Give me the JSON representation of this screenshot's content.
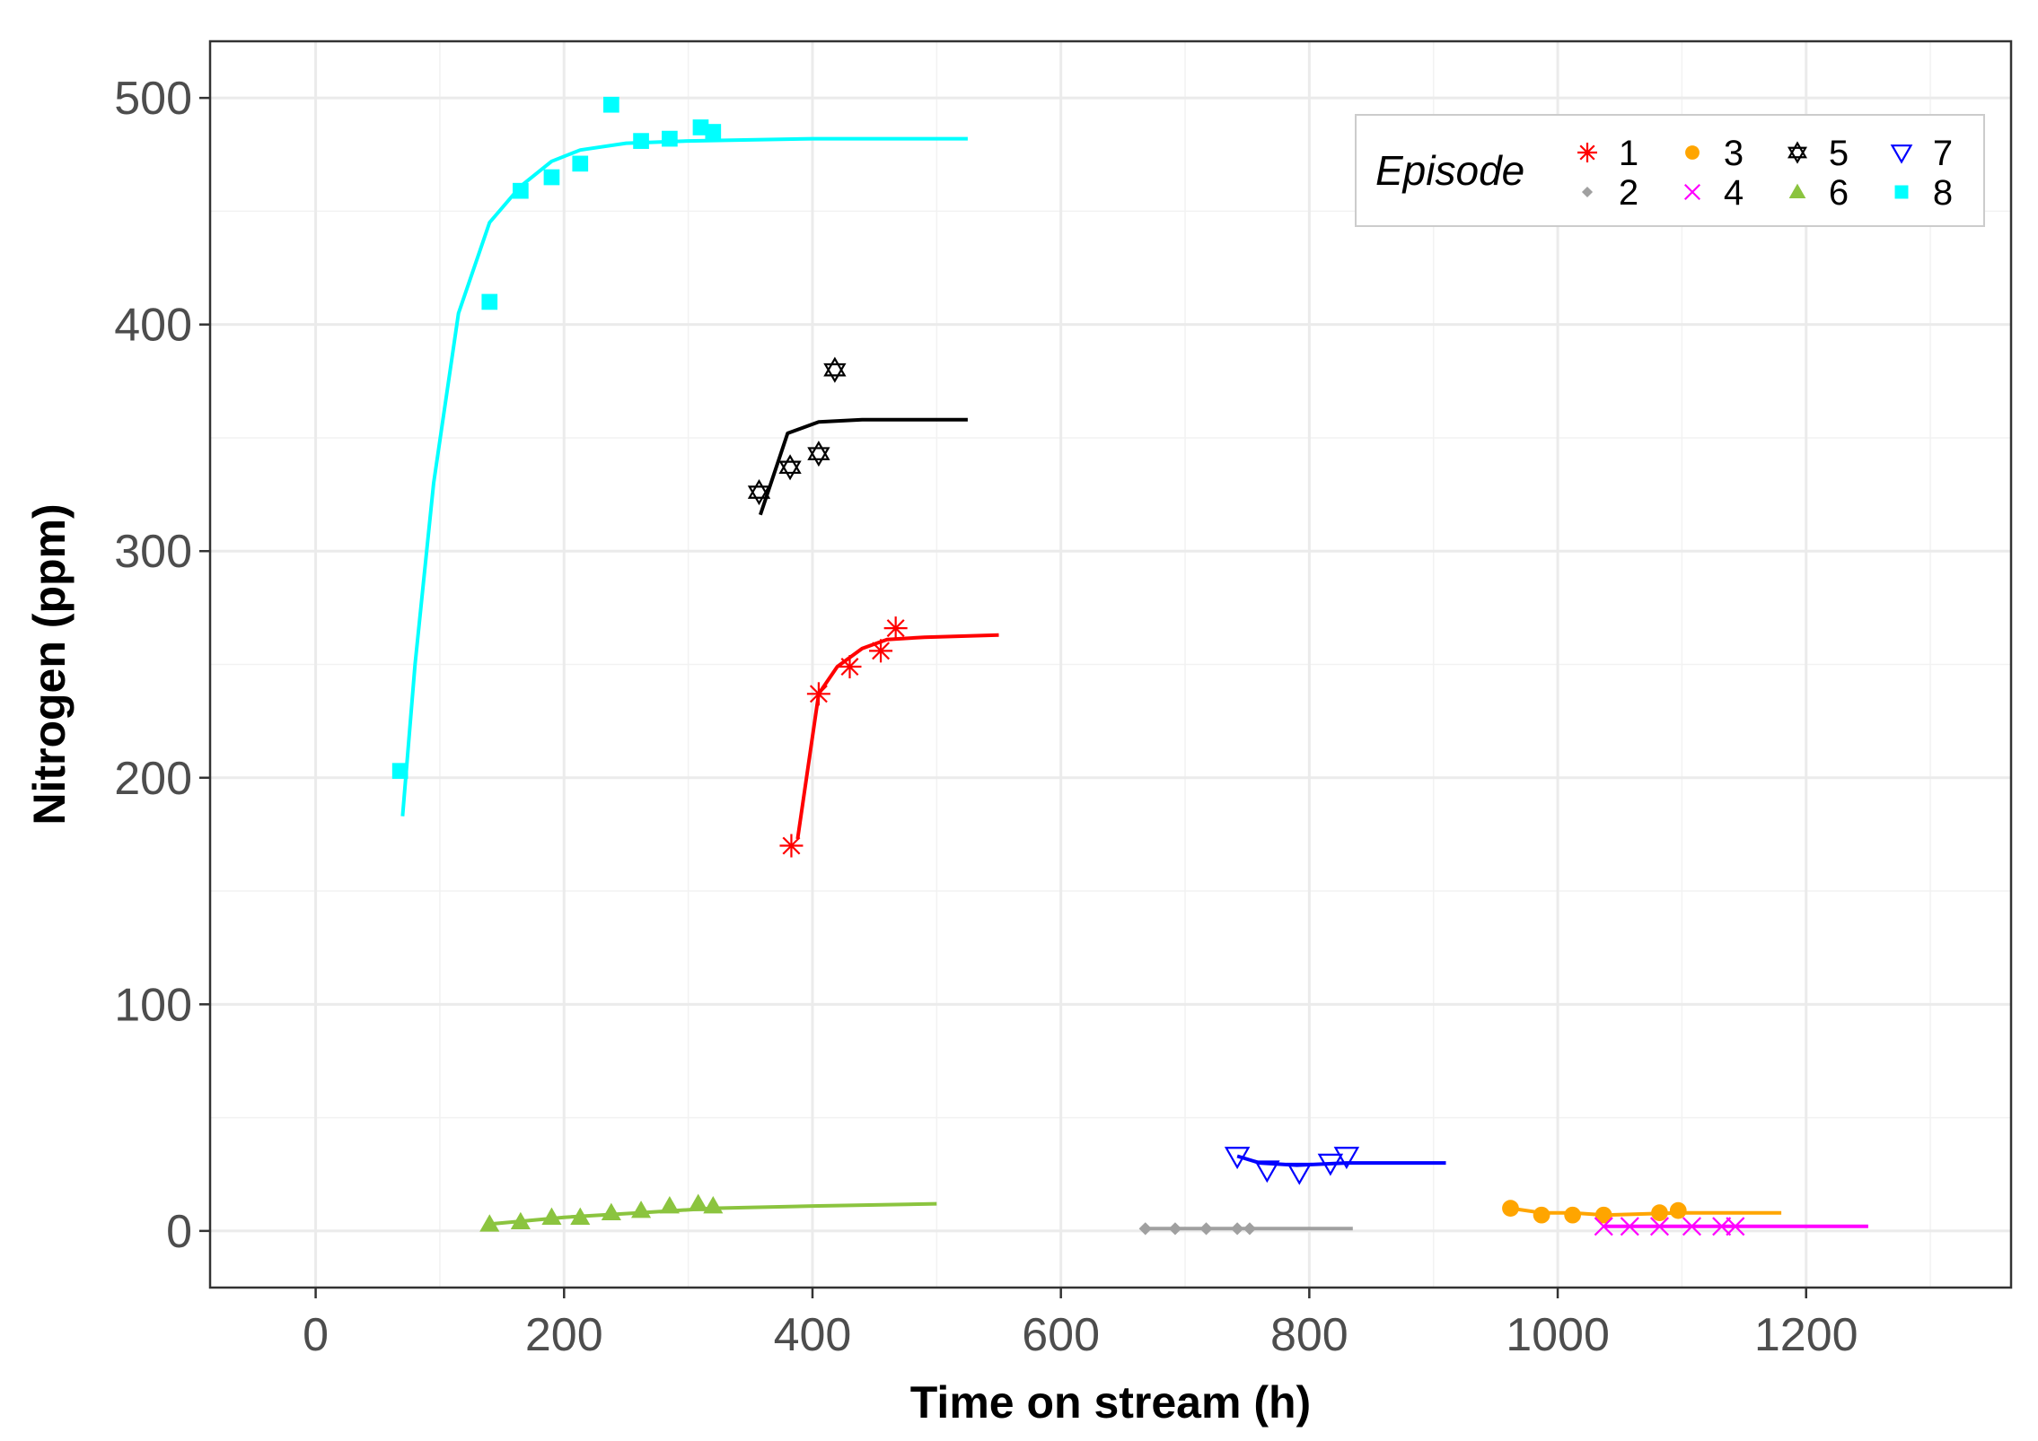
{
  "chart_data": {
    "type": "scatter",
    "title": "",
    "xlabel": "Time on stream (h)",
    "ylabel": "Nitrogen (ppm)",
    "xlim": [
      -85,
      1365
    ],
    "ylim": [
      -25,
      525
    ],
    "x_ticks": [
      0,
      200,
      400,
      600,
      800,
      1000,
      1200
    ],
    "x_tick_labels": [
      "0",
      "200",
      "400",
      "600",
      "800",
      "1000",
      "1200"
    ],
    "y_ticks": [
      0,
      100,
      200,
      300,
      400,
      500
    ],
    "y_tick_labels": [
      "0",
      "100",
      "200",
      "300",
      "400",
      "500"
    ],
    "grid": true,
    "legend": {
      "title": "Episode",
      "position": "top-right",
      "columns": 4
    },
    "series": [
      {
        "name": "1",
        "color": "#ff0000",
        "marker": "asterisk",
        "points": [
          [
            383,
            170
          ],
          [
            405,
            237
          ],
          [
            430,
            249
          ],
          [
            455,
            256
          ],
          [
            467,
            266
          ]
        ],
        "fit": [
          [
            388,
            173
          ],
          [
            405,
            237
          ],
          [
            420,
            249
          ],
          [
            440,
            257
          ],
          [
            460,
            261
          ],
          [
            490,
            262
          ],
          [
            550,
            263
          ]
        ]
      },
      {
        "name": "2",
        "color": "#a0a0a0",
        "marker": "diamond",
        "points": [
          [
            668,
            1
          ],
          [
            692,
            1
          ],
          [
            717,
            1
          ],
          [
            742,
            1
          ],
          [
            752,
            1
          ]
        ],
        "fit": [
          [
            668,
            1
          ],
          [
            835,
            1
          ]
        ]
      },
      {
        "name": "3",
        "color": "#ffa500",
        "marker": "circle",
        "points": [
          [
            962,
            10
          ],
          [
            987,
            7
          ],
          [
            1012,
            7
          ],
          [
            1037,
            7
          ],
          [
            1082,
            8
          ],
          [
            1097,
            9
          ]
        ],
        "fit": [
          [
            962,
            10
          ],
          [
            987,
            8
          ],
          [
            1012,
            8
          ],
          [
            1037,
            7
          ],
          [
            1097,
            8
          ],
          [
            1180,
            8
          ]
        ]
      },
      {
        "name": "4",
        "color": "#ff00ff",
        "marker": "cross",
        "points": [
          [
            1037,
            2
          ],
          [
            1058,
            2
          ],
          [
            1082,
            2
          ],
          [
            1108,
            2
          ],
          [
            1132,
            2
          ],
          [
            1143,
            2
          ]
        ],
        "fit": [
          [
            1037,
            2
          ],
          [
            1250,
            2
          ]
        ]
      },
      {
        "name": "5",
        "color": "#000000",
        "marker": "star-of-david",
        "points": [
          [
            357,
            326
          ],
          [
            382,
            337
          ],
          [
            405,
            343
          ],
          [
            418,
            380
          ]
        ],
        "fit": [
          [
            358,
            316
          ],
          [
            380,
            352
          ],
          [
            405,
            357
          ],
          [
            440,
            358
          ],
          [
            525,
            358
          ]
        ]
      },
      {
        "name": "6",
        "color": "#8bc43f",
        "marker": "triangle-up",
        "points": [
          [
            140,
            3
          ],
          [
            165,
            4
          ],
          [
            190,
            6
          ],
          [
            213,
            6
          ],
          [
            238,
            8
          ],
          [
            262,
            9
          ],
          [
            285,
            11
          ],
          [
            308,
            12
          ],
          [
            320,
            11
          ]
        ],
        "fit": [
          [
            140,
            3
          ],
          [
            200,
            6
          ],
          [
            260,
            8
          ],
          [
            320,
            10
          ],
          [
            400,
            11
          ],
          [
            500,
            12
          ]
        ]
      },
      {
        "name": "7",
        "color": "#0000ff",
        "marker": "triangle-down",
        "points": [
          [
            742,
            33
          ],
          [
            766,
            27
          ],
          [
            792,
            26
          ],
          [
            817,
            30
          ],
          [
            830,
            33
          ]
        ],
        "fit": [
          [
            742,
            33
          ],
          [
            760,
            30
          ],
          [
            790,
            29
          ],
          [
            830,
            30
          ],
          [
            910,
            30
          ]
        ]
      },
      {
        "name": "8",
        "color": "#00ffff",
        "marker": "square",
        "points": [
          [
            68,
            203
          ],
          [
            140,
            410
          ],
          [
            165,
            459
          ],
          [
            190,
            465
          ],
          [
            213,
            471
          ],
          [
            238,
            497
          ],
          [
            262,
            481
          ],
          [
            285,
            482
          ],
          [
            310,
            487
          ],
          [
            320,
            485
          ]
        ],
        "fit": [
          [
            70,
            183
          ],
          [
            80,
            250
          ],
          [
            95,
            330
          ],
          [
            115,
            405
          ],
          [
            140,
            445
          ],
          [
            165,
            461
          ],
          [
            190,
            472
          ],
          [
            213,
            477
          ],
          [
            250,
            480
          ],
          [
            300,
            481
          ],
          [
            400,
            482
          ],
          [
            525,
            482
          ]
        ]
      }
    ]
  }
}
